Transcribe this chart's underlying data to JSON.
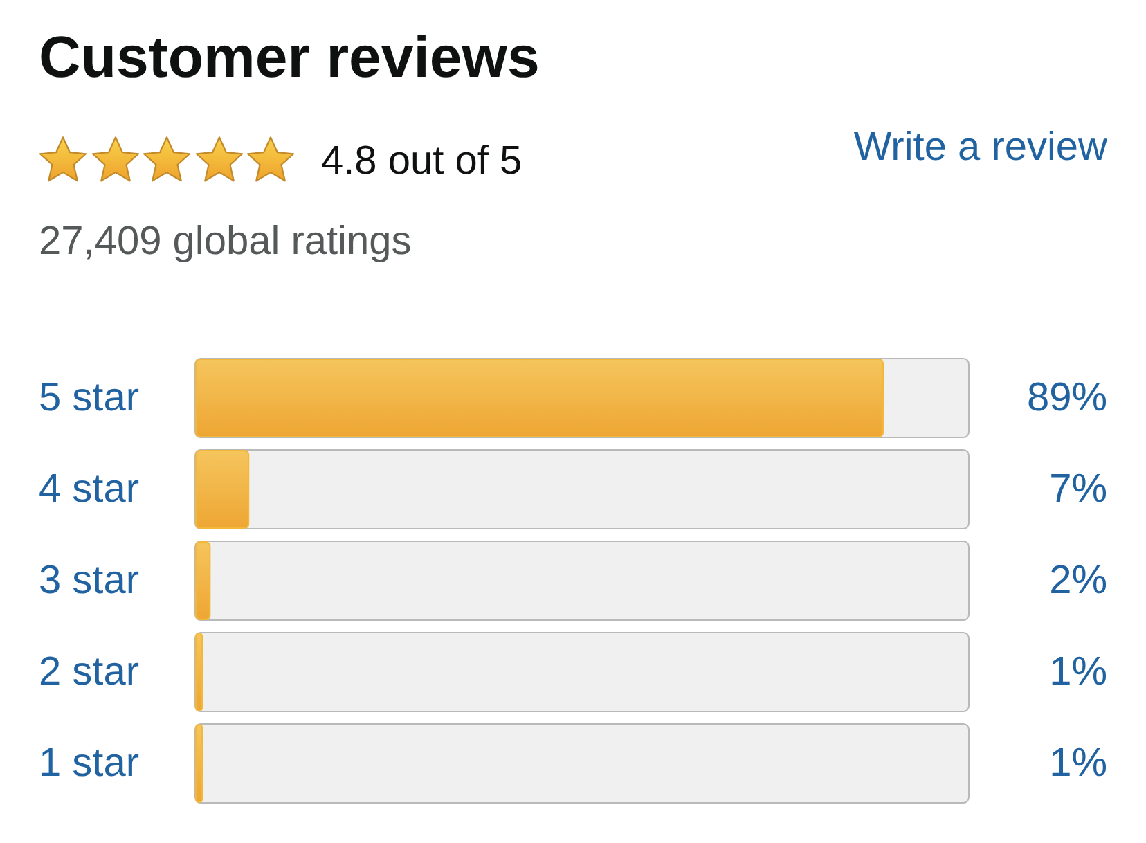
{
  "chart_data": {
    "type": "bar",
    "orientation": "horizontal",
    "title": "Customer reviews",
    "categories": [
      "5 star",
      "4 star",
      "3 star",
      "2 star",
      "1 star"
    ],
    "values": [
      89,
      7,
      2,
      1,
      1
    ],
    "value_labels": [
      "89%",
      "7%",
      "2%",
      "1%",
      "1%"
    ],
    "color": "#f3b83a",
    "xlim": [
      0,
      100
    ],
    "annotations": [
      "4.8 out of 5",
      "27,409 global ratings",
      "Write a review"
    ]
  }
}
